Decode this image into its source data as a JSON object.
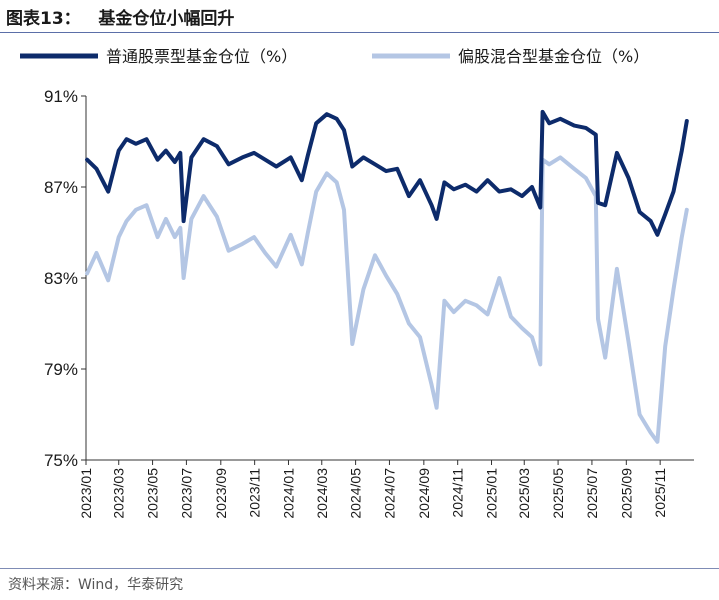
{
  "header": {
    "title": "图表13：   基金仓位小幅回升"
  },
  "footer": {
    "source": "资料来源：Wind，华泰研究"
  },
  "colors": {
    "series1": "#0d2b6b",
    "series2": "#b4c6e4",
    "axis": "#333333"
  },
  "chart_data": {
    "type": "line",
    "ylim": [
      75,
      91
    ],
    "ytick_values": [
      75,
      79,
      83,
      87,
      91
    ],
    "ytick_labels": [
      "75%",
      "79%",
      "83%",
      "87%",
      "91%"
    ],
    "x_start": "2023-01",
    "x_end": "2025-12",
    "xtick_labels": [
      "2023/01",
      "2023/03",
      "2023/05",
      "2023/07",
      "2023/09",
      "2023/11",
      "2024/01",
      "2024/03",
      "2024/05",
      "2024/07",
      "2024/09",
      "2024/11",
      "2025/01",
      "2025/03",
      "2025/05",
      "2025/07",
      "2025/09",
      "2025/11"
    ],
    "legend_position": "top",
    "series": [
      {
        "name": "普通股票型基金仓位（%）",
        "x": [
          "2023-01-03",
          "2023-01-20",
          "2023-02-10",
          "2023-03-01",
          "2023-03-15",
          "2023-04-01",
          "2023-04-20",
          "2023-05-10",
          "2023-05-25",
          "2023-06-10",
          "2023-06-20",
          "2023-06-26",
          "2023-07-10",
          "2023-08-01",
          "2023-08-25",
          "2023-09-15",
          "2023-10-10",
          "2023-10-31",
          "2023-11-20",
          "2023-12-10",
          "2024-01-05",
          "2024-01-25",
          "2024-02-05",
          "2024-02-20",
          "2024-03-10",
          "2024-03-28",
          "2024-04-10",
          "2024-04-25",
          "2024-05-15",
          "2024-06-05",
          "2024-06-25",
          "2024-07-15",
          "2024-08-05",
          "2024-08-25",
          "2024-09-15",
          "2024-09-24",
          "2024-10-08",
          "2024-10-25",
          "2024-11-15",
          "2024-12-05",
          "2024-12-25",
          "2025-01-15",
          "2025-02-05",
          "2025-02-25",
          "2025-03-15",
          "2025-03-30",
          "2025-04-03",
          "2025-04-15",
          "2025-05-05",
          "2025-05-30",
          "2025-06-20",
          "2025-07-08",
          "2025-07-12",
          "2025-07-25",
          "2025-08-15",
          "2025-09-05",
          "2025-09-25",
          "2025-10-15",
          "2025-10-27",
          "2025-11-10",
          "2025-11-25",
          "2025-12-10",
          "2025-12-19"
        ],
        "values": [
          88.2,
          87.8,
          86.8,
          88.6,
          89.1,
          88.9,
          89.1,
          88.2,
          88.6,
          88.1,
          88.5,
          85.5,
          88.3,
          89.1,
          88.8,
          88.0,
          88.3,
          88.5,
          88.2,
          87.9,
          88.3,
          87.3,
          88.4,
          89.8,
          90.2,
          90.0,
          89.5,
          87.9,
          88.3,
          88.0,
          87.7,
          87.8,
          86.6,
          87.3,
          86.2,
          85.6,
          87.2,
          86.9,
          87.1,
          86.8,
          87.3,
          86.8,
          86.9,
          86.6,
          87.0,
          86.1,
          90.3,
          89.8,
          90.0,
          89.7,
          89.6,
          89.3,
          86.3,
          86.2,
          88.5,
          87.4,
          85.9,
          85.5,
          84.9,
          85.8,
          86.8,
          88.6,
          89.9
        ]
      },
      {
        "name": "偏股混合型基金仓位（%）",
        "x": [
          "2023-01-03",
          "2023-01-20",
          "2023-02-10",
          "2023-03-01",
          "2023-03-15",
          "2023-04-01",
          "2023-04-20",
          "2023-05-10",
          "2023-05-25",
          "2023-06-10",
          "2023-06-20",
          "2023-06-26",
          "2023-07-10",
          "2023-08-01",
          "2023-08-25",
          "2023-09-15",
          "2023-10-10",
          "2023-10-31",
          "2023-11-20",
          "2023-12-10",
          "2024-01-05",
          "2024-01-25",
          "2024-02-05",
          "2024-02-20",
          "2024-03-10",
          "2024-03-28",
          "2024-04-10",
          "2024-04-25",
          "2024-05-15",
          "2024-06-05",
          "2024-06-25",
          "2024-07-15",
          "2024-08-05",
          "2024-08-25",
          "2024-09-15",
          "2024-09-24",
          "2024-10-08",
          "2024-10-25",
          "2024-11-15",
          "2024-12-05",
          "2024-12-25",
          "2025-01-15",
          "2025-02-05",
          "2025-02-25",
          "2025-03-15",
          "2025-03-30",
          "2025-04-03",
          "2025-04-15",
          "2025-05-05",
          "2025-05-30",
          "2025-06-20",
          "2025-07-08",
          "2025-07-12",
          "2025-07-25",
          "2025-08-15",
          "2025-09-05",
          "2025-09-25",
          "2025-10-15",
          "2025-10-27",
          "2025-11-10",
          "2025-11-25",
          "2025-12-10",
          "2025-12-19"
        ],
        "values": [
          83.2,
          84.1,
          82.9,
          84.8,
          85.5,
          86.0,
          86.2,
          84.8,
          85.6,
          84.8,
          85.2,
          83.0,
          85.6,
          86.6,
          85.7,
          84.2,
          84.5,
          84.8,
          84.1,
          83.5,
          84.9,
          83.6,
          85.0,
          86.8,
          87.6,
          87.2,
          86.0,
          80.1,
          82.5,
          84.0,
          83.1,
          82.3,
          81.0,
          80.4,
          78.3,
          77.3,
          82.0,
          81.5,
          82.0,
          81.8,
          81.4,
          83.0,
          81.3,
          80.8,
          80.4,
          79.2,
          88.2,
          88.0,
          88.3,
          87.8,
          87.4,
          86.6,
          81.2,
          79.5,
          83.4,
          80.2,
          77.0,
          76.2,
          75.8,
          80.0,
          82.5,
          84.8,
          86.0
        ]
      }
    ]
  }
}
